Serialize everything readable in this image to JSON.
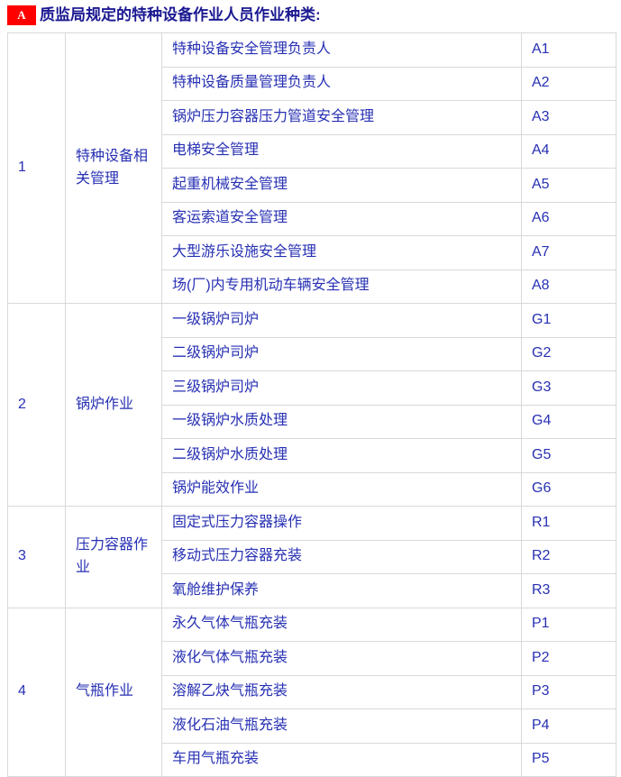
{
  "header": {
    "badge": "A",
    "title": "质监局规定的特种设备作业人员作业种类:"
  },
  "colors": {
    "badge_red": "#ff0000",
    "title_text": "#1b1991",
    "cell_text": "#2730b3",
    "border": "#d9d9d9",
    "background": "#ffffff"
  },
  "table": {
    "groups": [
      {
        "no": "1",
        "category": "特种设备相关管理",
        "items": [
          {
            "name": "特种设备安全管理负责人",
            "code": "A1"
          },
          {
            "name": "特种设备质量管理负责人",
            "code": "A2"
          },
          {
            "name": "锅炉压力容器压力管道安全管理",
            "code": "A3"
          },
          {
            "name": "电梯安全管理",
            "code": "A4"
          },
          {
            "name": "起重机械安全管理",
            "code": "A5"
          },
          {
            "name": "客运索道安全管理",
            "code": "A6"
          },
          {
            "name": "大型游乐设施安全管理",
            "code": "A7"
          },
          {
            "name": "场(厂)内专用机动车辆安全管理",
            "code": "A8"
          }
        ]
      },
      {
        "no": "2",
        "category": "锅炉作业",
        "items": [
          {
            "name": "一级锅炉司炉",
            "code": "G1"
          },
          {
            "name": "二级锅炉司炉",
            "code": "G2"
          },
          {
            "name": "三级锅炉司炉",
            "code": "G3"
          },
          {
            "name": "一级锅炉水质处理",
            "code": "G4"
          },
          {
            "name": "二级锅炉水质处理",
            "code": "G5"
          },
          {
            "name": "锅炉能效作业",
            "code": "G6"
          }
        ]
      },
      {
        "no": "3",
        "category": "压力容器作业",
        "items": [
          {
            "name": "固定式压力容器操作",
            "code": "R1"
          },
          {
            "name": "移动式压力容器充装",
            "code": "R2"
          },
          {
            "name": "氧舱维护保养",
            "code": "R3"
          }
        ]
      },
      {
        "no": "4",
        "category": "气瓶作业",
        "items": [
          {
            "name": "永久气体气瓶充装",
            "code": "P1"
          },
          {
            "name": "液化气体气瓶充装",
            "code": "P2"
          },
          {
            "name": "溶解乙炔气瓶充装",
            "code": "P3"
          },
          {
            "name": "液化石油气瓶充装",
            "code": "P4"
          },
          {
            "name": "车用气瓶充装",
            "code": "P5"
          }
        ]
      }
    ]
  }
}
